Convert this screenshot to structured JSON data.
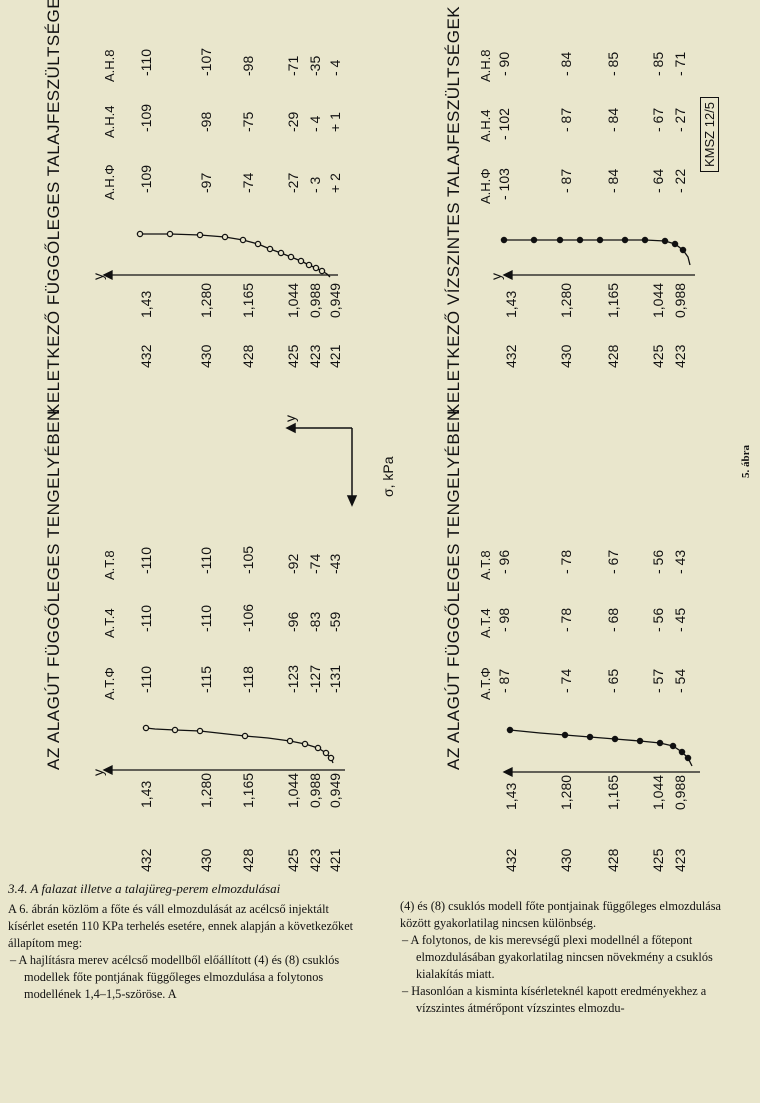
{
  "panels": {
    "top_left": {
      "title": "AZ ALAGÚT FÜGGŐLEGES TENGELYÉBEN",
      "row_labels": [
        "432",
        "430",
        "428",
        "425",
        "423",
        "421"
      ],
      "curve_labels": [
        "1,43",
        "1,280",
        "1,165",
        "1,044",
        "0,988",
        "0,949"
      ],
      "axis_label": "y",
      "col_headers": [
        "A.T.Φ",
        "A.T.4",
        "A.T.8"
      ],
      "values": [
        [
          "-110",
          "-110",
          "-110"
        ],
        [
          "-115",
          "-110",
          "-110"
        ],
        [
          "-118",
          "-106",
          "-105"
        ],
        [
          "-123",
          "-96",
          "-92"
        ],
        [
          "-127",
          "-83",
          "-74"
        ],
        [
          "-131",
          "-59",
          "-43"
        ]
      ]
    },
    "top_right": {
      "title": "KELETKEZŐ FÜGGŐLEGES TALAJFESZÜLTSÉGEK",
      "row_labels": [
        "432",
        "430",
        "428",
        "425",
        "423",
        "421"
      ],
      "curve_labels": [
        "1,43",
        "1,280",
        "1,165",
        "1,044",
        "0,988",
        "0,949"
      ],
      "axis_label": "y",
      "col_headers": [
        "A.H.Φ",
        "A.H.4",
        "A.H.8"
      ],
      "values": [
        [
          "-109",
          "-109",
          "-110"
        ],
        [
          "-97",
          "-98",
          "-107"
        ],
        [
          "-74",
          "-75",
          "-98"
        ],
        [
          "-27",
          "-29",
          "-71"
        ],
        [
          "- 3",
          "- 4",
          "-35"
        ],
        [
          "+ 2",
          "+ 1",
          "- 4"
        ]
      ]
    },
    "bottom_left": {
      "title": "AZ ALAGÚT FÜGGŐLEGES TENGELYÉBEN",
      "row_labels": [
        "432",
        "430",
        "428",
        "425",
        "423"
      ],
      "curve_labels": [
        "1,43",
        "1,280",
        "1,165",
        "1,044",
        "0,988"
      ],
      "col_headers": [
        "A.T.Φ",
        "A.T.4",
        "A.T.8"
      ],
      "values": [
        [
          "- 87",
          "- 98",
          "- 96"
        ],
        [
          "- 74",
          "- 78",
          "- 78"
        ],
        [
          "- 65",
          "- 68",
          "- 67"
        ],
        [
          "- 57",
          "- 56",
          "- 56"
        ],
        [
          "- 54",
          "- 45",
          "- 43"
        ]
      ]
    },
    "bottom_right": {
      "title": "KELETKEZŐ VÍZSZINTES TALAJFESZÜLTSÉGEK",
      "row_labels": [
        "432",
        "430",
        "428",
        "425",
        "423"
      ],
      "curve_labels": [
        "1,43",
        "1,280",
        "1,165",
        "1,044",
        "0,988"
      ],
      "axis_label": "y",
      "col_headers": [
        "A.H.Φ",
        "A.H.4",
        "A.H.8"
      ],
      "values": [
        [
          "- 103",
          "- 102",
          "- 90"
        ],
        [
          "- 87",
          "- 87",
          "- 84"
        ],
        [
          "- 84",
          "- 84",
          "- 85"
        ],
        [
          "- 64",
          "- 67",
          "- 85"
        ],
        [
          "- 22",
          "- 27",
          "- 71"
        ]
      ]
    }
  },
  "legend": {
    "y_label": "y",
    "sigma_label": "σ, kPa"
  },
  "kmsz_label": "KMSZ 12/5",
  "figure_label": "5. ábra",
  "text": {
    "heading": "3.4. A falazat illetve a talajüreg-perem elmozdulásai",
    "left_para": "A 6. ábrán közlöm a főte és váll elmozdulását az acélcső injektált kísérlet esetén 110 KPa terhelés esetére, ennek alapján a következőket állapítom meg:",
    "left_bullet": "A hajlításra merev acélcső modellből előállított (4) és (8) csuklós modellek főte pontjának függőleges elmozdulása a folytonos modellének 1,4–1,5-szöröse. A",
    "right_para": "(4) és (8) csuklós modell főte pontjainak függőleges elmozdulása között gyakorlatilag nincsen különbség.",
    "right_bullet1": "A folytonos, de kis merevségű plexi modellnél a főtepont elmozdulásában gyakorlatilag nincsen növekmény a csuklós kialakítás miatt.",
    "right_bullet2": "Hasonlóan a kisminta kísérleteknél kapott eredményekhez a vízszintes átmérőpont vízszintes elmozdu-"
  }
}
